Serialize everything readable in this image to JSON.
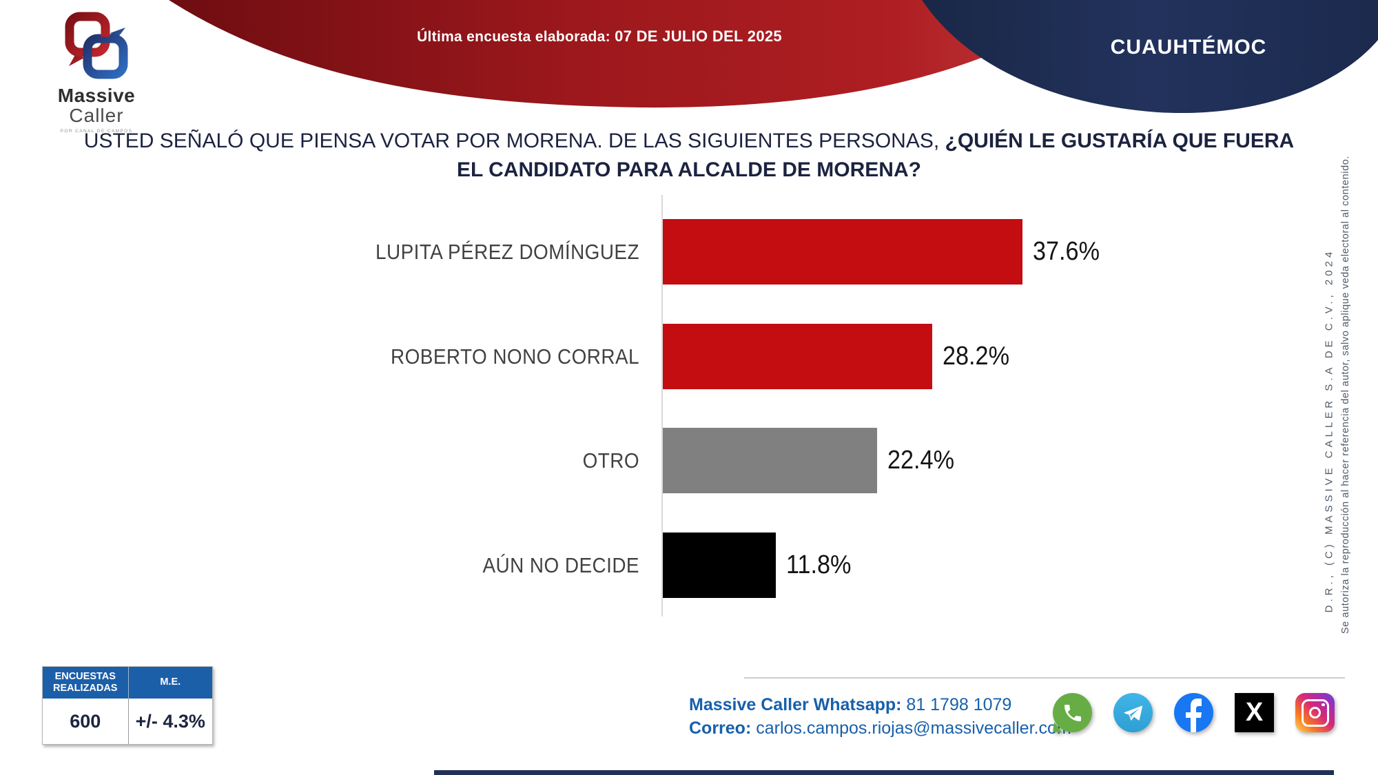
{
  "header": {
    "logo": {
      "brand_top": "Massive",
      "brand_bottom": "Caller",
      "tagline": "POR CANAL DE CAMPOS"
    },
    "banner_label": "Última encuesta elaborada:",
    "banner_date": "07 DE JULIO DEL 2025",
    "region": "CUAUHTÉMOC"
  },
  "question": {
    "line1_normal": "USTED SEÑALÓ QUE PIENSA VOTAR POR MORENA. DE LAS SIGUIENTES PERSONAS, ",
    "line1_bold": "¿QUIÉN LE GUSTARÍA QUE FUERA",
    "line2_bold": "EL CANDIDATO PARA ALCALDE DE MORENA?"
  },
  "chart_data": {
    "type": "bar",
    "orientation": "horizontal",
    "title": "USTED SEÑALÓ QUE PIENSA VOTAR POR MORENA. DE LAS SIGUIENTES PERSONAS, ¿QUIÉN LE GUSTARÍA QUE FUERA EL CANDIDATO PARA ALCALDE DE MORENA?",
    "categories": [
      "LUPITA PÉREZ DOMÍNGUEZ",
      "ROBERTO NONO CORRAL",
      "OTRO",
      "AÚN NO DECIDE"
    ],
    "values": [
      37.6,
      28.2,
      22.4,
      11.8
    ],
    "value_labels": [
      "37.6%",
      "28.2%",
      "22.4%",
      "11.8%"
    ],
    "bar_colors": [
      "#c30d10",
      "#c30d10",
      "#808080",
      "#000000"
    ],
    "xlim": [
      0,
      40
    ],
    "grid": false,
    "legend": false,
    "xlabel": "",
    "ylabel": ""
  },
  "stats_table": {
    "headers": [
      "ENCUESTAS REALIZADAS",
      "M.E."
    ],
    "values": [
      "600",
      "+/- 4.3%"
    ]
  },
  "contact": {
    "whatsapp_label": "Massive Caller Whatsapp:",
    "whatsapp_number": "81 1798 1079",
    "email_label": "Correo:",
    "email": "carlos.campos.riojas@massivecaller.com"
  },
  "social": {
    "facebook_glyph": "f",
    "x_glyph": "X",
    "items": [
      "whatsapp",
      "telegram",
      "facebook",
      "x",
      "instagram"
    ]
  },
  "copyright": {
    "line1": "D.R., (C) MASSIVE CALLER S.A DE C.V., 2024",
    "line2": "Se autoriza la reproducción al hacer referencia del autor, salvo aplique veda electoral al contenido."
  },
  "colors": {
    "banner_red_dark": "#6e0d12",
    "banner_red": "#a61b1f",
    "navy": "#1f2f58",
    "title_navy": "#1c2340",
    "bar_red": "#c30d10",
    "bar_gray": "#808080",
    "bar_black": "#000000",
    "table_header_blue": "#1c5fa9",
    "contact_blue": "#1760ab",
    "whatsapp_green": "#67ad45",
    "telegram_blue": "#41b5e6",
    "facebook_blue": "#1877f2"
  }
}
